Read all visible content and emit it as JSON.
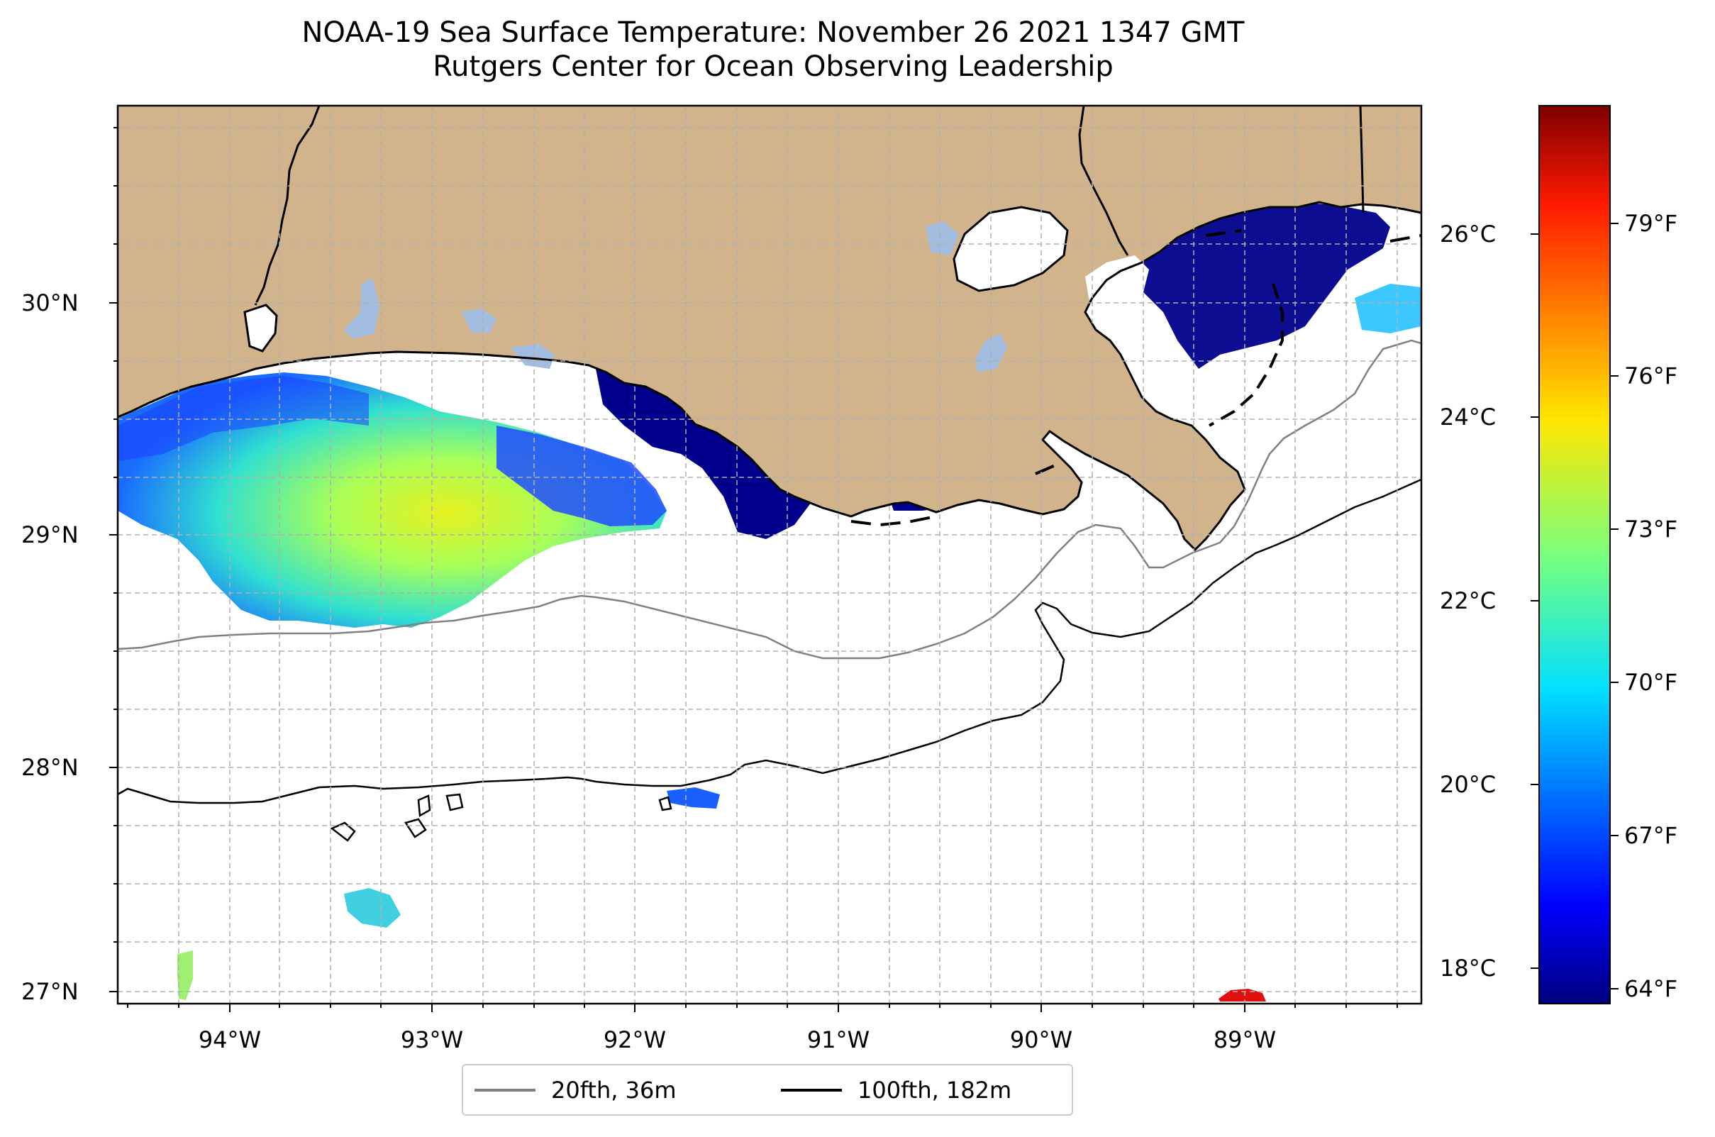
{
  "title": {
    "line1": "NOAA-19 Sea Surface Temperature: November 26 2021 1347 GMT",
    "line2": "Rutgers Center for Ocean Observing Leadership"
  },
  "map": {
    "lon_range": [
      -94.55,
      -88.1
    ],
    "lat_range": [
      26.93,
      30.83
    ],
    "gridlines": true,
    "x_ticks": [
      "94°W",
      "93°W",
      "92°W",
      "91°W",
      "90°W",
      "89°W"
    ],
    "y_ticks": [
      "27°N",
      "28°N",
      "29°N",
      "30°N"
    ],
    "colors": {
      "land": "#d2b48c",
      "inland_water": "#a3bde0",
      "ocean_nodata": "#ffffff"
    }
  },
  "colorbar": {
    "colormap": "jet",
    "range_c": [
      17.6,
      27.4
    ],
    "celsius_ticks": [
      "18°C",
      "20°C",
      "22°C",
      "24°C",
      "26°C"
    ],
    "fahrenheit_ticks": [
      "64°F",
      "67°F",
      "70°F",
      "73°F",
      "76°F",
      "79°F"
    ]
  },
  "legend": {
    "items": [
      {
        "label": "20fth, 36m",
        "color": "#808080"
      },
      {
        "label": "100fth, 182m",
        "color": "#000000"
      }
    ]
  }
}
